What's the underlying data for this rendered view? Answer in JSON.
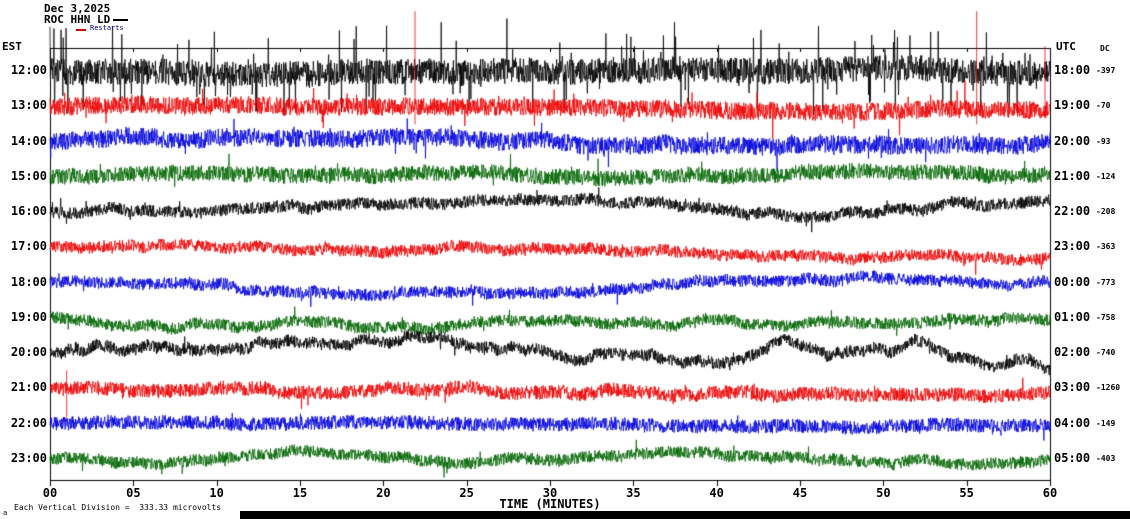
{
  "palette": {
    "black": "#000000",
    "red": "#ee0000",
    "blue": "#0000dd",
    "green": "#006600"
  },
  "header": {
    "date": "Dec 3,2025",
    "station": "ROC HHN LD",
    "legend_restarts": "Restarts",
    "left_axis_label": "EST",
    "right_axis_label": "UTC",
    "dc_label": "DC"
  },
  "footer": {
    "xlabel": "TIME (MINUTES)",
    "division_note": "Each Vertical Division =  333.33 microvolts",
    "corner_mark": "a"
  },
  "chart_data": {
    "type": "line",
    "title": "ROC HHN LD helicorder — Dec 3,2025",
    "description": "12 stacked one-hour seismogram traces, colors cycling black/red/blue/green, EST labels left, UTC labels right, DC offset (counts) far right.",
    "x": {
      "label": "TIME (MINUTES)",
      "min": 0,
      "max": 60,
      "tick_interval_minutes": 5,
      "ticks": [
        "00",
        "05",
        "10",
        "15",
        "20",
        "25",
        "30",
        "35",
        "40",
        "45",
        "50",
        "55",
        "60"
      ]
    },
    "y_division_microvolts": 333.33,
    "rows": [
      {
        "est": "12:00",
        "utc": "18:00",
        "dc": "-397",
        "color": "black",
        "trace": {
          "seed": 101,
          "wander": 5,
          "noise": 13,
          "spike_p": 0.07,
          "spike": 42,
          "events": []
        }
      },
      {
        "est": "13:00",
        "utc": "19:00",
        "dc": "-70",
        "color": "red",
        "trace": {
          "seed": 202,
          "wander": 6,
          "noise": 9,
          "spike_p": 0.02,
          "spike": 22,
          "events": [
            {
              "m": 21.9,
              "up": 95,
              "down": 18
            },
            {
              "m": 55.6,
              "up": 95,
              "down": 18
            },
            {
              "m": 59.7,
              "up": 60,
              "down": 12
            }
          ]
        }
      },
      {
        "est": "14:00",
        "utc": "20:00",
        "dc": "-93",
        "color": "blue",
        "trace": {
          "seed": 303,
          "wander": 6,
          "noise": 9,
          "spike_p": 0.015,
          "spike": 18,
          "events": []
        }
      },
      {
        "est": "15:00",
        "utc": "21:00",
        "dc": "-124",
        "color": "green",
        "trace": {
          "seed": 404,
          "wander": 6,
          "noise": 8,
          "spike_p": 0.01,
          "spike": 14,
          "events": []
        }
      },
      {
        "est": "16:00",
        "utc": "22:00",
        "dc": "-208",
        "color": "black",
        "trace": {
          "seed": 505,
          "wander": 14,
          "noise": 6,
          "spike_p": 0.01,
          "spike": 12,
          "events": []
        }
      },
      {
        "est": "17:00",
        "utc": "23:00",
        "dc": "-363",
        "color": "red",
        "trace": {
          "seed": 606,
          "wander": 13,
          "noise": 6,
          "spike_p": 0.008,
          "spike": 12,
          "events": []
        }
      },
      {
        "est": "18:00",
        "utc": "00:00",
        "dc": "-773",
        "color": "blue",
        "trace": {
          "seed": 707,
          "wander": 13,
          "noise": 6,
          "spike_p": 0.008,
          "spike": 12,
          "events": []
        }
      },
      {
        "est": "19:00",
        "utc": "01:00",
        "dc": "-758",
        "color": "green",
        "trace": {
          "seed": 808,
          "wander": 12,
          "noise": 6,
          "spike_p": 0.008,
          "spike": 12,
          "events": []
        }
      },
      {
        "est": "20:00",
        "utc": "02:00",
        "dc": "-740",
        "color": "black",
        "trace": {
          "seed": 909,
          "wander": 18,
          "noise": 6,
          "spike_p": 0.008,
          "spike": 12,
          "events": []
        }
      },
      {
        "est": "21:00",
        "utc": "03:00",
        "dc": "-1260",
        "color": "red",
        "trace": {
          "seed": 1010,
          "wander": 8,
          "noise": 7,
          "spike_p": 0.012,
          "spike": 14,
          "events": [
            {
              "m": 1.0,
              "up": 18,
              "down": 30
            }
          ]
        }
      },
      {
        "est": "22:00",
        "utc": "04:00",
        "dc": "-149",
        "color": "blue",
        "trace": {
          "seed": 1111,
          "wander": 4,
          "noise": 7,
          "spike_p": 0.01,
          "spike": 10,
          "events": []
        }
      },
      {
        "est": "23:00",
        "utc": "05:00",
        "dc": "-403",
        "color": "green",
        "trace": {
          "seed": 1212,
          "wander": 9,
          "noise": 6,
          "spike_p": 0.008,
          "spike": 12,
          "events": []
        }
      }
    ]
  }
}
